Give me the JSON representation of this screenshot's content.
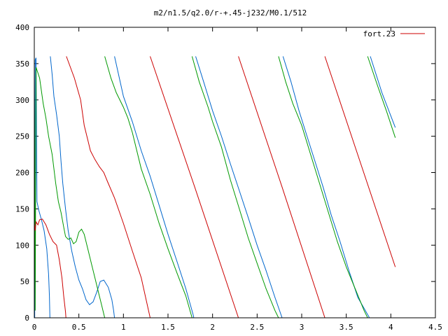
{
  "chart_data": {
    "type": "line",
    "title": "m2/n1.5/q2.0/r-+.45-j232/M0.1/512",
    "xlabel": "",
    "ylabel": "",
    "xlim": [
      0,
      4.5
    ],
    "ylim": [
      0,
      400
    ],
    "x_ticks": [
      0,
      0.5,
      1,
      1.5,
      2,
      2.5,
      3,
      3.5,
      4,
      4.5
    ],
    "y_ticks": [
      0,
      50,
      100,
      150,
      200,
      250,
      300,
      350,
      400
    ],
    "x_tick_labels": [
      "0",
      "0.5",
      "1",
      "1.5",
      "2",
      "2.5",
      "3",
      "3.5",
      "4",
      "4.5"
    ],
    "y_tick_labels": [
      "0",
      "50",
      "100",
      "150",
      "200",
      "250",
      "300",
      "350",
      "400"
    ],
    "grid": false,
    "legend_position": "top-right",
    "legend": [
      {
        "label": "fort.23",
        "color": "#cc0000"
      }
    ],
    "series": [
      {
        "name": "fort.23",
        "color": "#cc0000",
        "points": [
          [
            0.0,
            130
          ],
          [
            0.01,
            120
          ],
          [
            0.02,
            132
          ],
          [
            0.04,
            128
          ],
          [
            0.06,
            135
          ],
          [
            0.09,
            136
          ],
          [
            0.13,
            128
          ],
          [
            0.17,
            115
          ],
          [
            0.21,
            105
          ],
          [
            0.25,
            100
          ],
          [
            0.28,
            80
          ],
          [
            0.31,
            55
          ],
          [
            0.33,
            30
          ],
          [
            0.35,
            8
          ],
          [
            0.355,
            0
          ],
          [
            null,
            null
          ],
          [
            0.36,
            360
          ],
          [
            0.45,
            330
          ],
          [
            0.52,
            300
          ],
          [
            0.56,
            265
          ],
          [
            0.6,
            245
          ],
          [
            0.63,
            230
          ],
          [
            0.68,
            218
          ],
          [
            0.73,
            208
          ],
          [
            0.78,
            200
          ],
          [
            0.82,
            188
          ],
          [
            0.9,
            165
          ],
          [
            1.0,
            130
          ],
          [
            1.1,
            92
          ],
          [
            1.2,
            55
          ],
          [
            1.3,
            0
          ],
          [
            null,
            null
          ],
          [
            1.3,
            360
          ],
          [
            1.8,
            180
          ],
          [
            2.29,
            0
          ],
          [
            null,
            null
          ],
          [
            2.29,
            360
          ],
          [
            2.78,
            180
          ],
          [
            3.26,
            0
          ],
          [
            null,
            null
          ],
          [
            3.26,
            360
          ],
          [
            4.05,
            70
          ]
        ]
      },
      {
        "name": "",
        "color": "#009900",
        "points": [
          [
            0.0,
            340
          ],
          [
            0.01,
            10
          ],
          [
            0.02,
            345
          ],
          [
            0.06,
            330
          ],
          [
            0.1,
            295
          ],
          [
            0.13,
            275
          ],
          [
            0.16,
            250
          ],
          [
            0.2,
            225
          ],
          [
            0.24,
            185
          ],
          [
            0.27,
            160
          ],
          [
            0.3,
            145
          ],
          [
            0.33,
            125
          ],
          [
            0.35,
            112
          ],
          [
            0.38,
            108
          ],
          [
            0.41,
            110
          ],
          [
            0.44,
            102
          ],
          [
            0.47,
            105
          ],
          [
            0.5,
            118
          ],
          [
            0.53,
            122
          ],
          [
            0.56,
            115
          ],
          [
            0.6,
            95
          ],
          [
            0.64,
            75
          ],
          [
            0.68,
            55
          ],
          [
            0.72,
            35
          ],
          [
            0.76,
            15
          ],
          [
            0.78,
            5
          ],
          [
            0.79,
            0
          ],
          [
            null,
            null
          ],
          [
            0.79,
            360
          ],
          [
            0.86,
            330
          ],
          [
            0.92,
            310
          ],
          [
            1.0,
            290
          ],
          [
            1.05,
            275
          ],
          [
            1.1,
            255
          ],
          [
            1.2,
            205
          ],
          [
            1.3,
            170
          ],
          [
            1.4,
            130
          ],
          [
            1.5,
            95
          ],
          [
            1.6,
            62
          ],
          [
            1.7,
            30
          ],
          [
            1.77,
            0
          ],
          [
            null,
            null
          ],
          [
            1.77,
            360
          ],
          [
            1.85,
            325
          ],
          [
            1.95,
            290
          ],
          [
            2.0,
            270
          ],
          [
            2.1,
            235
          ],
          [
            2.2,
            190
          ],
          [
            2.3,
            150
          ],
          [
            2.4,
            110
          ],
          [
            2.5,
            75
          ],
          [
            2.6,
            40
          ],
          [
            2.7,
            10
          ],
          [
            2.74,
            0
          ],
          [
            null,
            null
          ],
          [
            2.74,
            360
          ],
          [
            2.82,
            325
          ],
          [
            2.9,
            295
          ],
          [
            3.0,
            265
          ],
          [
            3.1,
            225
          ],
          [
            3.2,
            185
          ],
          [
            3.3,
            145
          ],
          [
            3.4,
            105
          ],
          [
            3.5,
            70
          ],
          [
            3.6,
            40
          ],
          [
            3.7,
            10
          ],
          [
            3.74,
            0
          ],
          [
            null,
            null
          ],
          [
            3.74,
            360
          ],
          [
            3.85,
            320
          ],
          [
            3.95,
            285
          ],
          [
            4.05,
            248
          ]
        ]
      },
      {
        "name": "",
        "color": "#0066cc",
        "points": [
          [
            0.0,
            350
          ],
          [
            0.005,
            0
          ],
          [
            0.01,
            355
          ],
          [
            0.02,
            358
          ],
          [
            0.03,
            160
          ],
          [
            0.05,
            148
          ],
          [
            0.08,
            135
          ],
          [
            0.11,
            120
          ],
          [
            0.14,
            95
          ],
          [
            0.16,
            60
          ],
          [
            0.17,
            30
          ],
          [
            0.175,
            0
          ],
          [
            null,
            null
          ],
          [
            0.18,
            360
          ],
          [
            0.2,
            335
          ],
          [
            0.22,
            305
          ],
          [
            0.25,
            280
          ],
          [
            0.28,
            250
          ],
          [
            0.3,
            215
          ],
          [
            0.32,
            185
          ],
          [
            0.35,
            150
          ],
          [
            0.38,
            120
          ],
          [
            0.42,
            92
          ],
          [
            0.46,
            70
          ],
          [
            0.5,
            52
          ],
          [
            0.54,
            40
          ],
          [
            0.58,
            25
          ],
          [
            0.62,
            18
          ],
          [
            0.66,
            22
          ],
          [
            0.7,
            35
          ],
          [
            0.74,
            50
          ],
          [
            0.78,
            52
          ],
          [
            0.83,
            42
          ],
          [
            0.87,
            25
          ],
          [
            0.89,
            10
          ],
          [
            0.9,
            0
          ],
          [
            null,
            null
          ],
          [
            0.9,
            360
          ],
          [
            1.0,
            305
          ],
          [
            1.1,
            270
          ],
          [
            1.2,
            230
          ],
          [
            1.3,
            195
          ],
          [
            1.4,
            155
          ],
          [
            1.5,
            115
          ],
          [
            1.6,
            78
          ],
          [
            1.7,
            40
          ],
          [
            1.78,
            5
          ],
          [
            1.79,
            0
          ],
          [
            null,
            null
          ],
          [
            1.81,
            360
          ],
          [
            1.9,
            325
          ],
          [
            2.0,
            285
          ],
          [
            2.1,
            250
          ],
          [
            2.2,
            212
          ],
          [
            2.3,
            175
          ],
          [
            2.4,
            138
          ],
          [
            2.5,
            100
          ],
          [
            2.6,
            65
          ],
          [
            2.7,
            28
          ],
          [
            2.78,
            0
          ],
          [
            null,
            null
          ],
          [
            2.79,
            360
          ],
          [
            2.88,
            325
          ],
          [
            2.97,
            285
          ],
          [
            3.06,
            250
          ],
          [
            3.15,
            215
          ],
          [
            3.24,
            180
          ],
          [
            3.33,
            142
          ],
          [
            3.43,
            105
          ],
          [
            3.53,
            65
          ],
          [
            3.63,
            28
          ],
          [
            3.76,
            0
          ],
          [
            null,
            null
          ],
          [
            3.77,
            360
          ],
          [
            3.9,
            310
          ],
          [
            4.05,
            262
          ]
        ]
      }
    ]
  }
}
